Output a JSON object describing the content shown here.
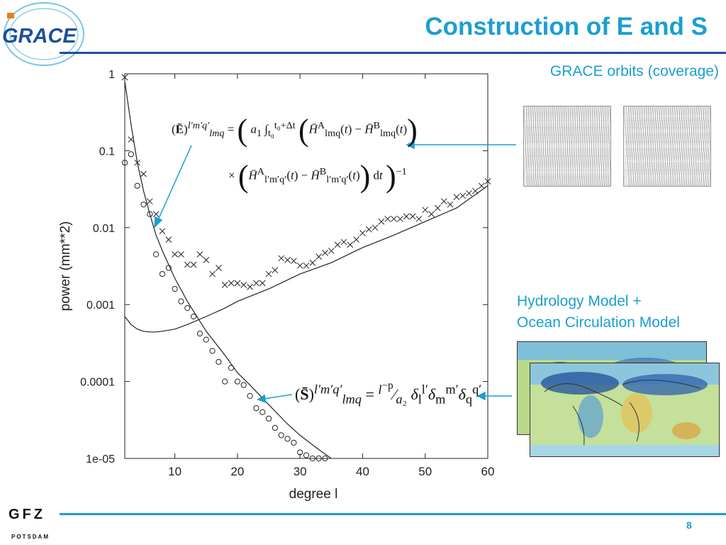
{
  "header": {
    "title": "Construction of E and S",
    "logo_text": "GRACE"
  },
  "labels": {
    "orbits": "GRACE orbits (coverage)",
    "hydrology_line1": "Hydrology Model +",
    "hydrology_line2": "Ocean Circulation Model"
  },
  "footer": {
    "org": "GFZ",
    "org_sub": "POTSDAM",
    "page_number": "8"
  },
  "colors": {
    "accent": "#1a9fd0",
    "rule": "#1d4f99"
  },
  "chart_data": {
    "type": "scatter",
    "xlabel": "degree l",
    "ylabel": "power (mm**2)",
    "xlim": [
      2,
      60
    ],
    "ylim": [
      1e-05,
      1
    ],
    "yscale": "log",
    "xticks": [
      "10",
      "20",
      "30",
      "40",
      "50",
      "60"
    ],
    "yticks": [
      "1",
      "0.1",
      "0.01",
      "0.001",
      "0.0001",
      "1e-05"
    ],
    "x_tick_values": [
      10,
      20,
      30,
      40,
      50,
      60
    ],
    "y_tick_values": [
      1,
      0.1,
      0.01,
      0.001,
      0.0001,
      1e-05
    ],
    "grid": false,
    "series": [
      {
        "marker": "circle",
        "x": [
          2,
          3,
          4,
          5,
          6,
          7,
          8,
          9,
          10,
          11,
          12,
          13,
          14,
          15,
          16,
          17,
          18,
          19,
          20,
          21,
          22,
          23,
          24,
          25,
          26,
          27,
          28,
          29,
          30,
          31,
          32,
          33,
          34
        ],
        "values": [
          0.07,
          0.09,
          0.035,
          0.02,
          0.015,
          0.0045,
          0.0025,
          0.003,
          0.0016,
          0.0011,
          0.0009,
          0.0007,
          0.00042,
          0.00035,
          0.00025,
          0.00018,
          0.0001,
          0.00015,
          0.0001,
          9e-05,
          6.5e-05,
          4.5e-05,
          4e-05,
          3.3e-05,
          2.5e-05,
          2e-05,
          1.8e-05,
          1.6e-05,
          1.2e-05,
          1.1e-05,
          1e-05,
          1e-05,
          1e-05
        ]
      },
      {
        "marker": "cross",
        "x": [
          2,
          3,
          4,
          5,
          6,
          7,
          8,
          9,
          10,
          11,
          12,
          13,
          14,
          15,
          16,
          17,
          18,
          19,
          20,
          21,
          22,
          23,
          24,
          25,
          26,
          27,
          28,
          29,
          30,
          31,
          32,
          33,
          34,
          35,
          36,
          37,
          38,
          39,
          40,
          41,
          42,
          43,
          44,
          45,
          46,
          47,
          48,
          49,
          50,
          51,
          52,
          53,
          54,
          55,
          56,
          57,
          58,
          59,
          60
        ],
        "values": [
          0.9,
          0.14,
          0.07,
          0.05,
          0.022,
          0.015,
          0.009,
          0.007,
          0.0045,
          0.0045,
          0.0033,
          0.0033,
          0.0045,
          0.0038,
          0.0025,
          0.003,
          0.0018,
          0.0019,
          0.0019,
          0.0018,
          0.0017,
          0.0019,
          0.0019,
          0.0025,
          0.0028,
          0.004,
          0.0038,
          0.0037,
          0.0032,
          0.0032,
          0.0035,
          0.0042,
          0.0047,
          0.005,
          0.006,
          0.0065,
          0.006,
          0.007,
          0.0085,
          0.0095,
          0.01,
          0.012,
          0.013,
          0.013,
          0.013,
          0.014,
          0.014,
          0.013,
          0.017,
          0.015,
          0.018,
          0.022,
          0.02,
          0.025,
          0.026,
          0.028,
          0.03,
          0.035,
          0.04
        ]
      },
      {
        "marker": "line",
        "x": [
          2,
          3,
          4,
          5,
          6,
          7,
          8,
          10,
          12,
          15,
          18,
          20,
          25,
          30,
          35,
          40,
          45,
          50,
          55,
          60
        ],
        "values": [
          0.0007,
          0.00055,
          0.00048,
          0.00045,
          0.00044,
          0.00044,
          0.00045,
          0.00048,
          0.00055,
          0.0007,
          0.0009,
          0.0011,
          0.0016,
          0.0025,
          0.0035,
          0.0055,
          0.008,
          0.012,
          0.018,
          0.035
        ]
      },
      {
        "marker": "line",
        "x": [
          2,
          3,
          4,
          5,
          6,
          7,
          8,
          10,
          12,
          15,
          18,
          20,
          22,
          25,
          28,
          30,
          33,
          35
        ],
        "values": [
          0.8,
          0.22,
          0.07,
          0.03,
          0.015,
          0.008,
          0.005,
          0.0022,
          0.0011,
          0.00045,
          0.00022,
          0.00013,
          9e-05,
          5e-05,
          2.8e-05,
          2e-05,
          1.3e-05,
          1e-05
        ]
      }
    ]
  }
}
